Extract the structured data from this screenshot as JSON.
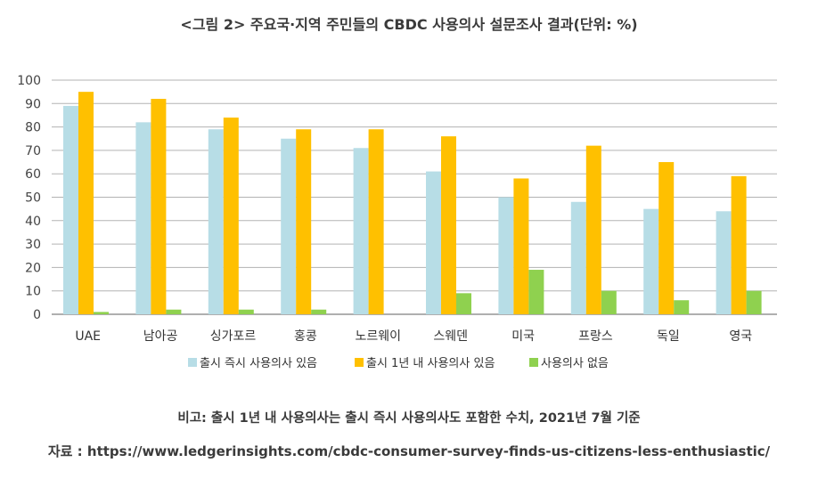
{
  "title": "<그림 2> 주요국·지역 주민들의 CBDC 사용의사 설문조사 결과(단위: %)",
  "note": "비고: 출시 1년 내 사용의사는 출시 즉시 사용의사도 포함한 수치, 2021년 7월 기준",
  "source": "자료 : https://www.ledgerinsights.com/cbdc-consumer-survey-finds-us-citizens-less-enthusiastic/",
  "colors": {
    "series_immediate": "#b7dde6",
    "series_within_year": "#ffc000",
    "series_none": "#8fd14f",
    "grid": "#b3b3b3",
    "axis": "#7f7f7f"
  },
  "chart_data": {
    "type": "bar",
    "categories": [
      "UAE",
      "남아공",
      "싱가포르",
      "홍콩",
      "노르웨이",
      "스웨덴",
      "미국",
      "프랑스",
      "독일",
      "영국"
    ],
    "series": [
      {
        "name": "출시 즉시 사용의사 있음",
        "values": [
          89,
          82,
          79,
          75,
          71,
          61,
          50,
          48,
          45,
          44
        ]
      },
      {
        "name": "출시 1년 내 사용의사 있음",
        "values": [
          95,
          92,
          84,
          79,
          79,
          76,
          58,
          72,
          65,
          59
        ]
      },
      {
        "name": "사용의사 없음",
        "values": [
          1,
          2,
          2,
          2,
          0,
          9,
          19,
          10,
          6,
          10
        ]
      }
    ],
    "yticks": [
      0,
      10,
      20,
      30,
      40,
      50,
      60,
      70,
      80,
      90,
      100
    ],
    "ylim": [
      0,
      100
    ],
    "grid": true,
    "legend_position": "bottom"
  }
}
